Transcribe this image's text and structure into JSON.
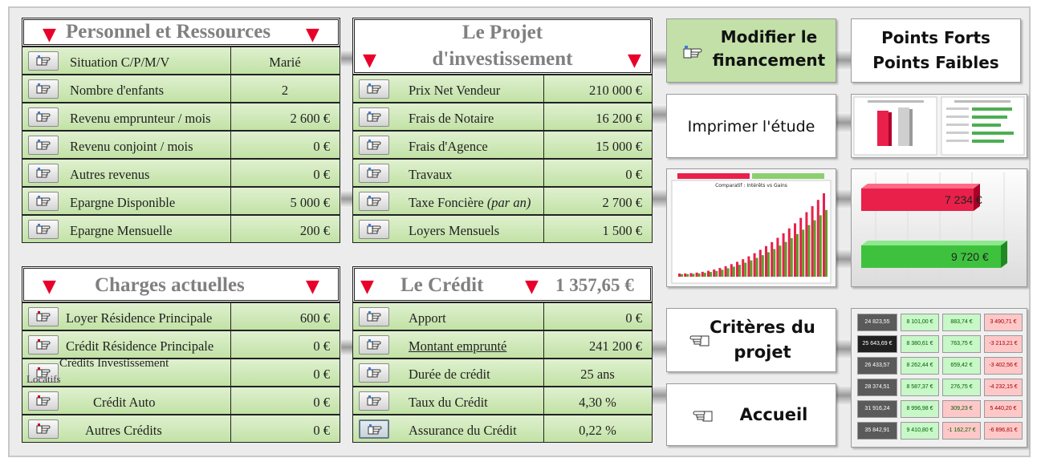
{
  "personnel": {
    "title": "Personnel et Ressources",
    "rows": [
      {
        "label": "Situation C/P/M/V",
        "value": "Marié"
      },
      {
        "label": "Nombre d'enfants",
        "value": "2"
      },
      {
        "label": "Revenu emprunteur / mois",
        "value": "2 600 €"
      },
      {
        "label": "Revenu conjoint / mois",
        "value": "0 €"
      },
      {
        "label": "Autres revenus",
        "value": "0 €"
      },
      {
        "label": "Epargne Disponible",
        "value": "5 000 €"
      },
      {
        "label": "Epargne Mensuelle",
        "value": "200 €"
      }
    ]
  },
  "projet": {
    "title_line1": "Le Projet",
    "title_line2": "d'investissement",
    "rows": [
      {
        "label": "Prix Net Vendeur",
        "value": "210 000 €"
      },
      {
        "label": "Frais de Notaire",
        "value": "16 200 €"
      },
      {
        "label": "Frais d'Agence",
        "value": "15 000 €"
      },
      {
        "label": "Travaux",
        "value": "0 €"
      },
      {
        "label": "Taxe Foncière",
        "label_suffix": "(par an)",
        "value": "2 700 €"
      },
      {
        "label": "Loyers Mensuels",
        "value": "1 500 €"
      }
    ]
  },
  "charges": {
    "title": "Charges actuelles",
    "rows": [
      {
        "label": "Loyer Résidence Principale",
        "value": "600 €"
      },
      {
        "label": "Crédit Résidence Principale",
        "value": "0 €"
      },
      {
        "label": "Crédits Investissement",
        "label_extra": "Locatifs",
        "value": "0 €"
      },
      {
        "label": "Crédit Auto",
        "value": "0 €"
      },
      {
        "label": "Autres Crédits",
        "value": "0 €"
      }
    ]
  },
  "credit": {
    "title": "Le Crédit",
    "total": "1 357,65 €",
    "rows": [
      {
        "label": "Apport",
        "value": "0 €"
      },
      {
        "label": "Montant emprunté",
        "value": "241 200 €"
      },
      {
        "label": "Durée de crédit",
        "value": "25 ans"
      },
      {
        "label": "Taux du Crédit",
        "value": "4,30 %"
      },
      {
        "label": "Assurance du Crédit",
        "value": "0,22 %"
      }
    ]
  },
  "actions": {
    "modifier_line1": "Modifier le",
    "modifier_line2": "financement",
    "points_line1": "Points Forts",
    "points_line2": "Points Faibles",
    "imprimer": "Imprimer l'étude",
    "criteres_line1": "Critères du",
    "criteres_line2": "projet",
    "accueil": "Accueil"
  },
  "thumbnails": {
    "chart_title": "Comparatif : Intérêts vs Gains",
    "bar_top_value": "7 234 €",
    "bar_bottom_value": "9 720 €",
    "table_rows": [
      [
        "24 823,55",
        "8 101,00 €",
        "883,74 €",
        "3 490,71 €"
      ],
      [
        "25 643,69 €",
        "8 380,61 €",
        "763,75 €",
        "-3 213,21 €"
      ],
      [
        "26 433,57",
        "8 262,44 €",
        "659,42 €",
        "-3 402,56 €"
      ],
      [
        "28 374,51",
        "8 587,37 €",
        "276,75 €",
        "-4 232,15 €"
      ],
      [
        "31 916,24",
        "8 996,98 €",
        "309,23 €",
        "5 440,20 €"
      ],
      [
        "35 842,91",
        "9 410,80 €",
        "-1 162,27 €",
        "-6 896,81 €"
      ]
    ]
  },
  "colors": {
    "row_green": "#c2e2a6",
    "accent_red": "#e8002a",
    "title_grey": "#808080",
    "tile_green": "#c2e0a8",
    "bar_red": "#e8204a",
    "bar_green": "#3ec23e"
  }
}
